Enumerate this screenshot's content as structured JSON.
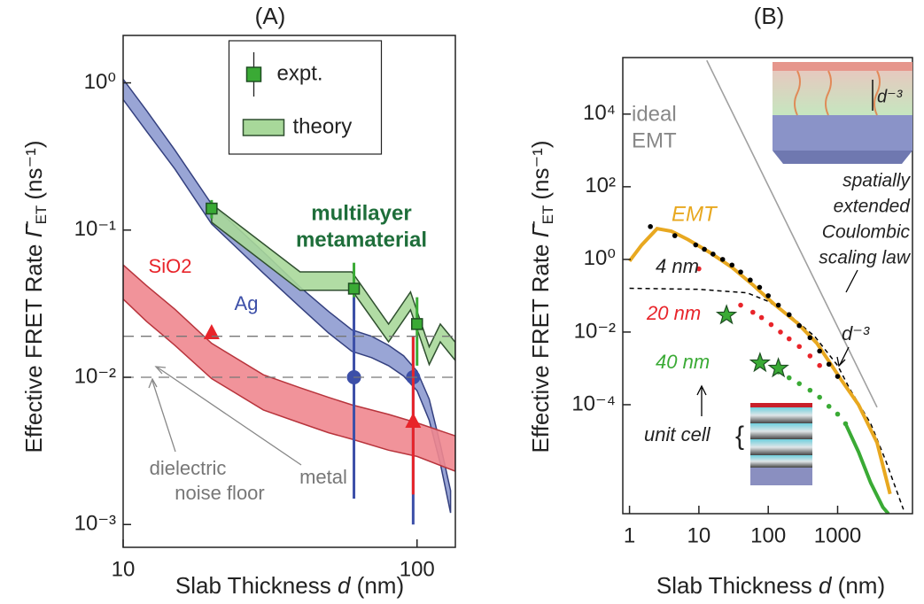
{
  "chart_data": [
    {
      "type": "line",
      "title": "(A)",
      "xlabel": {
        "text": "Slab Thickness",
        "var": "d",
        "unit": "(nm)"
      },
      "ylabel": {
        "text": "Effective FRET Rate",
        "symbol": "Γ̄",
        "sub": "ET",
        "unit": "(ns⁻¹)"
      },
      "log_x": true,
      "log_y": true,
      "xlim": [
        10,
        135
      ],
      "ylim": [
        0.0007,
        2.1
      ],
      "xticks": [
        10,
        100
      ],
      "yticks": [
        {
          "value": 0.001,
          "label": "10⁻³"
        },
        {
          "value": 0.01,
          "label": "10⁻²"
        },
        {
          "value": 0.1,
          "label": "10⁻¹"
        },
        {
          "value": 1,
          "label": "10⁰"
        }
      ],
      "legend": {
        "position": "upper center",
        "entries": [
          {
            "label": "expt.",
            "style": "square",
            "color": "#3aaa35"
          },
          {
            "label": "theory",
            "style": "band",
            "color": "#a8d89a"
          }
        ]
      },
      "annotations": [
        "multilayer",
        "metamaterial",
        "dielectric",
        "noise floor",
        "metal"
      ],
      "series": [
        {
          "label": "Ag",
          "style": "band",
          "color": "#8e9bd0",
          "edge": "#34407f",
          "x": [
            10,
            12,
            15,
            20,
            30,
            40,
            50,
            60,
            70,
            80,
            90,
            100,
            110,
            120,
            130
          ],
          "lower": [
            0.77,
            0.47,
            0.26,
            0.11,
            0.051,
            0.03,
            0.02,
            0.015,
            0.0136,
            0.012,
            0.0102,
            0.0081,
            0.0051,
            0.0026,
            0.0012
          ],
          "upper": [
            1.06,
            0.65,
            0.35,
            0.15,
            0.071,
            0.041,
            0.028,
            0.021,
            0.019,
            0.0165,
            0.014,
            0.011,
            0.0071,
            0.0035,
            0.0017
          ]
        },
        {
          "label": "SiO2",
          "style": "band",
          "color": "#f0878f",
          "edge": "#b8343c",
          "x": [
            10,
            12,
            15,
            20,
            30,
            40,
            50,
            60,
            80,
            100,
            135
          ],
          "lower": [
            0.034,
            0.024,
            0.0165,
            0.0098,
            0.006,
            0.0049,
            0.0042,
            0.0038,
            0.0032,
            0.0029,
            0.0023
          ],
          "upper": [
            0.058,
            0.042,
            0.029,
            0.017,
            0.0104,
            0.0085,
            0.0073,
            0.0065,
            0.0056,
            0.0049,
            0.004
          ]
        },
        {
          "style": "band",
          "color": "#a8d89a",
          "edge": "#2f4f2f",
          "x": [
            20,
            40,
            60,
            80,
            95,
            110,
            120,
            135
          ],
          "lower": [
            0.113,
            0.039,
            0.039,
            0.0174,
            0.0287,
            0.0122,
            0.0174,
            0.013
          ],
          "upper": [
            0.15,
            0.052,
            0.052,
            0.023,
            0.038,
            0.0161,
            0.023,
            0.0173
          ]
        },
        {
          "style": "square",
          "color": "#3aaa35",
          "x": [
            20,
            61,
            100
          ],
          "values": [
            0.14,
            0.04,
            0.023
          ],
          "err_low": [
            0.12,
            0.025,
            0.012
          ],
          "err_high": [
            0.16,
            0.06,
            0.035
          ]
        },
        {
          "style": "circle",
          "color": "#3c4fa8",
          "x": [
            61,
            97
          ],
          "values": [
            0.01,
            0.01
          ],
          "err_low": [
            0.0015,
            0.001
          ],
          "err_high": [
            0.035,
            0.019
          ]
        },
        {
          "style": "triangle",
          "color": "#e8242a",
          "x": [
            20,
            97
          ],
          "values": [
            0.02,
            0.005
          ],
          "err_low": [
            null,
            0.0016
          ],
          "err_high": [
            null,
            0.019
          ]
        },
        {
          "style": "hline",
          "color": "#777777",
          "values": [
            0.019,
            0.01
          ]
        }
      ]
    },
    {
      "type": "line",
      "title": "(B)",
      "xlabel": {
        "text": "Slab Thickness",
        "var": "d",
        "unit": "(nm)"
      },
      "ylabel": {
        "text": "Effective FRET Rate",
        "symbol": "Γ̄",
        "sub": "ET",
        "unit": "(ns⁻¹)"
      },
      "log_x": true,
      "log_y": true,
      "xlim": [
        0.8,
        12000
      ],
      "ylim": [
        1e-07,
        360000
      ],
      "xticks": [
        1,
        10,
        100,
        1000
      ],
      "yticks": [
        {
          "value": 0.0001,
          "label": "10⁻⁴"
        },
        {
          "value": 0.01,
          "label": "10⁻²"
        },
        {
          "value": 1,
          "label": "10⁰"
        },
        {
          "value": 100,
          "label": "10²"
        },
        {
          "value": 10000,
          "label": "10⁴"
        }
      ],
      "annotations": [
        "ideal",
        "EMT",
        "spatially",
        "extended",
        "Coulombic",
        "scaling law",
        "d⁻³",
        "d⁻³",
        "unit cell",
        "{"
      ],
      "series": [
        {
          "style": "line",
          "color": "#a0a0a0",
          "x": [
            13,
            3700
          ],
          "values": [
            300000,
            8.5e-05
          ]
        },
        {
          "style": "dashed",
          "color": "#000000",
          "x": [
            1,
            10,
            50,
            100,
            200,
            470,
            1000,
            1500,
            3000,
            4900,
            8900
          ],
          "values": [
            0.16,
            0.15,
            0.12,
            0.07,
            0.03,
            0.0075,
            0.0012,
            0.00027,
            3e-05,
            3e-06,
            1.3e-07
          ]
        },
        {
          "label": "EMT",
          "style": "line",
          "color": "#e8a820",
          "x": [
            1,
            1.5,
            2.5,
            4,
            7,
            14,
            30,
            60,
            120,
            260,
            500,
            1150,
            2000,
            3700,
            5700
          ],
          "values": [
            0.9,
            2.5,
            7,
            6,
            3.5,
            1.6,
            0.6,
            0.2,
            0.06,
            0.018,
            0.005,
            0.00046,
            0.0001,
            9e-06,
            3.5e-07
          ]
        },
        {
          "label": "4 nm",
          "style": "dots",
          "color": "#000000",
          "x": [
            2,
            4.5,
            9,
            12,
            16,
            22,
            30,
            40,
            55,
            75,
            100,
            140,
            200,
            280,
            400,
            550,
            750,
            1000
          ],
          "values": [
            8,
            4.5,
            2.5,
            1.9,
            1.4,
            1.0,
            0.7,
            0.45,
            0.27,
            0.17,
            0.1,
            0.055,
            0.03,
            0.015,
            0.007,
            0.003,
            0.0013,
            0.0006
          ]
        },
        {
          "label": "20 nm",
          "style": "dots",
          "color": "#e8242a",
          "x": [
            10,
            40,
            60,
            80,
            110,
            150,
            200,
            280,
            400,
            550
          ],
          "values": [
            0.55,
            0.055,
            0.035,
            0.025,
            0.016,
            0.01,
            0.0065,
            0.004,
            0.0022,
            0.0012
          ]
        },
        {
          "label": "40 nm",
          "style": "dots",
          "color": "#3aaa35",
          "x": [
            140,
            200,
            280,
            400,
            550,
            750,
            1000,
            1300
          ],
          "values": [
            0.0008,
            0.00055,
            0.00038,
            0.00025,
            0.00016,
            9e-05,
            5.5e-05,
            3e-05
          ]
        },
        {
          "style": "line",
          "color": "#3aaa35",
          "x": [
            1300,
            2000,
            3000,
            4500,
            5400
          ],
          "values": [
            3e-05,
            5e-06,
            7e-07,
            1.5e-07,
            1e-07
          ]
        },
        {
          "style": "star",
          "color": "#3aaa35",
          "x": [
            25,
            76,
            140
          ],
          "values": [
            0.029,
            0.0014,
            0.001
          ]
        }
      ]
    }
  ]
}
